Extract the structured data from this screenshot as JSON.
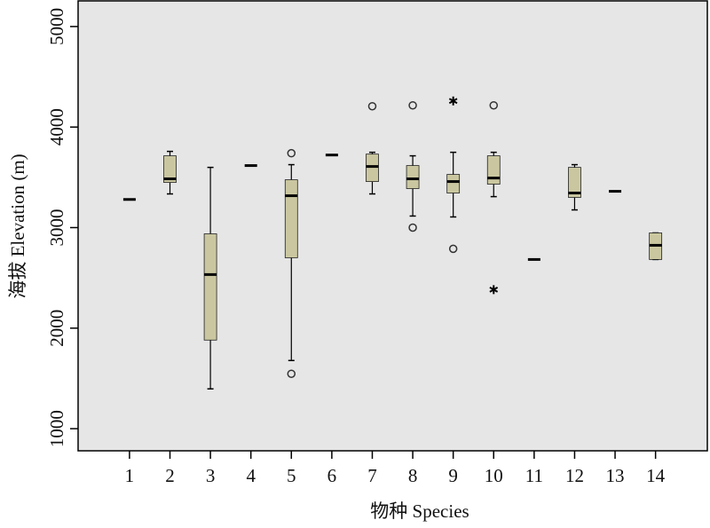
{
  "chart_data": {
    "type": "box",
    "x_label": "物种 Species",
    "y_label": "海拔 Elevation (m)",
    "categories": [
      "1",
      "2",
      "3",
      "4",
      "5",
      "6",
      "7",
      "8",
      "9",
      "10",
      "11",
      "12",
      "13",
      "14"
    ],
    "boxes": [
      {
        "min": 3280,
        "q1": 3280,
        "median": 3280,
        "q3": 3280,
        "max": 3280,
        "outliers": [],
        "extremes": []
      },
      {
        "min": 3335,
        "q1": 3449,
        "median": 3485,
        "q3": 3714,
        "max": 3758,
        "outliers": [],
        "extremes": []
      },
      {
        "min": 1396,
        "q1": 1881,
        "median": 2533,
        "q3": 2938,
        "max": 3599,
        "outliers": [],
        "extremes": []
      },
      {
        "min": 3617,
        "q1": 3617,
        "median": 3617,
        "q3": 3617,
        "max": 3617,
        "outliers": [],
        "extremes": []
      },
      {
        "min": 1678,
        "q1": 2700,
        "median": 3317,
        "q3": 3476,
        "max": 3626,
        "outliers": [
          3740,
          1546
        ],
        "extremes": []
      },
      {
        "min": 3722,
        "q1": 3722,
        "median": 3722,
        "q3": 3722,
        "max": 3722,
        "outliers": [],
        "extremes": []
      },
      {
        "min": 3335,
        "q1": 3458,
        "median": 3608,
        "q3": 3731,
        "max": 3749,
        "outliers": [
          4207
        ],
        "extremes": []
      },
      {
        "min": 3115,
        "q1": 3388,
        "median": 3485,
        "q3": 3617,
        "max": 3714,
        "outliers": [
          4216,
          3000
        ],
        "extremes": []
      },
      {
        "min": 3106,
        "q1": 3344,
        "median": 3458,
        "q3": 3529,
        "max": 3749,
        "outliers": [
          2789
        ],
        "extremes": [
          4260
        ]
      },
      {
        "min": 3308,
        "q1": 3432,
        "median": 3493,
        "q3": 3714,
        "max": 3749,
        "outliers": [
          4216
        ],
        "extremes": [
          2383
        ]
      },
      {
        "min": 2683,
        "q1": 2683,
        "median": 2683,
        "q3": 2683,
        "max": 2683,
        "outliers": [],
        "extremes": []
      },
      {
        "min": 3176,
        "q1": 3300,
        "median": 3344,
        "q3": 3599,
        "max": 3626,
        "outliers": [],
        "extremes": []
      },
      {
        "min": 3361,
        "q1": 3361,
        "median": 3361,
        "q3": 3361,
        "max": 3361,
        "outliers": [],
        "extremes": []
      },
      {
        "min": 2683,
        "q1": 2683,
        "median": 2824,
        "q3": 2947,
        "max": 2947,
        "outliers": [],
        "extremes": []
      }
    ],
    "box_color": "#cac7a0",
    "background": "#e6e6e6",
    "ylim": [
      780,
      5255
    ],
    "yticks": [
      1000,
      2000,
      3000,
      4000,
      5000
    ]
  }
}
